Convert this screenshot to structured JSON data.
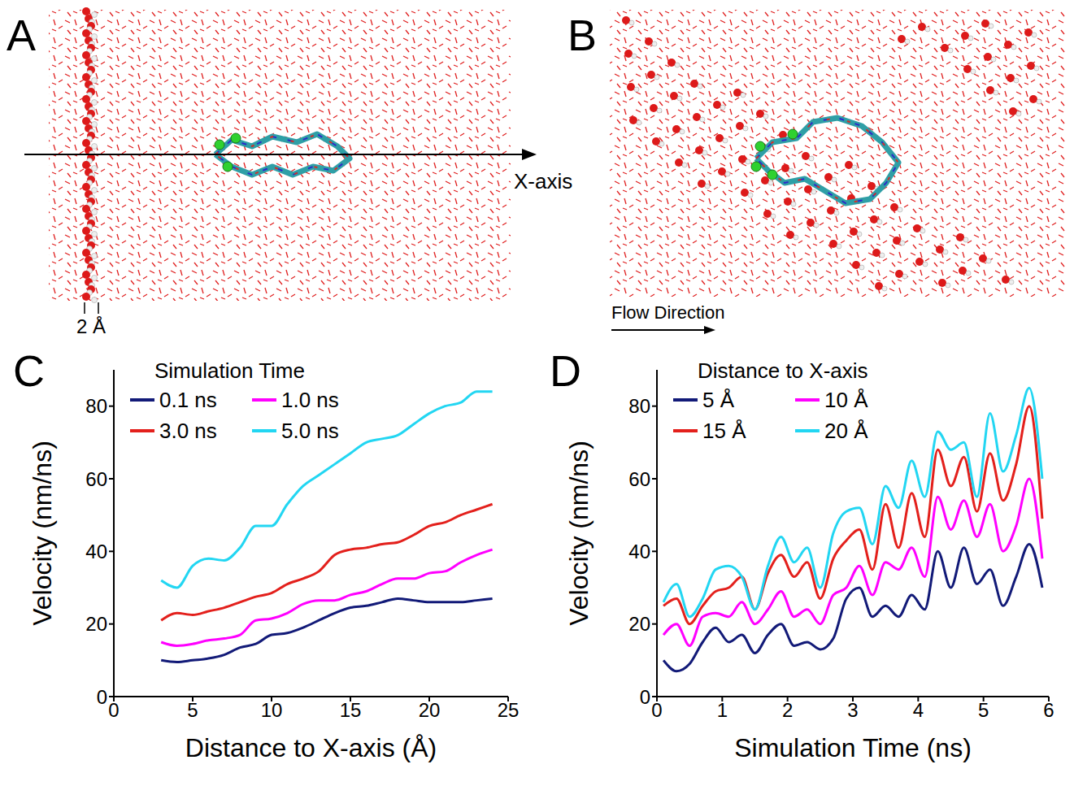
{
  "images": [
    {
      "panel": "A",
      "axis_label": "X-axis",
      "scale_label": "2 Å"
    },
    {
      "panel": "B",
      "flow_label": "Flow Direction"
    }
  ],
  "chart_data": [
    {
      "panel": "C",
      "type": "line",
      "x_label": "Distance to X-axis (Å)",
      "y_label": "Velocity (nm/ns)",
      "legend_title": "Simulation Time",
      "legend": "top-left",
      "grid": false,
      "line_style": "smooth",
      "x": [
        3,
        4,
        5,
        6,
        7,
        8,
        9,
        10,
        11,
        12,
        13,
        14,
        15,
        16,
        17,
        18,
        19,
        20,
        21,
        22,
        23,
        24
      ],
      "series": [
        {
          "name": "0.1 ns",
          "color": "#121a78",
          "values": [
            10,
            9.5,
            10,
            10.5,
            11.5,
            13.5,
            14.5,
            17,
            17.5,
            19,
            21,
            23,
            24.5,
            25,
            26,
            27,
            26.5,
            26,
            26,
            26,
            26.5,
            27
          ]
        },
        {
          "name": "1.0 ns",
          "color": "#ff00ff",
          "values": [
            15,
            14,
            14.5,
            15.5,
            16,
            17,
            21,
            21.5,
            23,
            25.5,
            26.5,
            26.5,
            28,
            29,
            31,
            32.5,
            32.5,
            34,
            34.5,
            37,
            39,
            40.5
          ]
        },
        {
          "name": "3.0 ns",
          "color": "#e3201c",
          "values": [
            21,
            23,
            22.5,
            23.5,
            24.5,
            26,
            27.5,
            28.5,
            31,
            32.5,
            34.5,
            39,
            40.5,
            41,
            42,
            42.5,
            44.5,
            47,
            48,
            50,
            51.5,
            53
          ]
        },
        {
          "name": "5.0 ns",
          "color": "#22d6f2",
          "values": [
            32,
            30,
            36,
            38,
            37.5,
            41,
            47,
            47,
            53,
            58,
            61,
            64,
            67,
            70,
            71,
            72,
            75,
            78,
            80,
            81,
            84,
            84
          ]
        }
      ],
      "xlim": [
        0,
        25
      ],
      "xticks": [
        0,
        5,
        10,
        15,
        20,
        25
      ],
      "ylim": [
        0,
        90
      ],
      "yticks": [
        0,
        20,
        40,
        60,
        80
      ]
    },
    {
      "panel": "D",
      "type": "line",
      "x_label": "Simulation Time (ns)",
      "y_label": "Velocity (nm/ns)",
      "legend_title": "Distance to X-axis",
      "legend": "top-left",
      "grid": false,
      "line_style": "smooth",
      "x": [
        0.1,
        0.3,
        0.5,
        0.7,
        0.9,
        1.1,
        1.3,
        1.5,
        1.7,
        1.9,
        2.1,
        2.3,
        2.5,
        2.7,
        2.9,
        3.1,
        3.3,
        3.5,
        3.7,
        3.9,
        4.1,
        4.3,
        4.5,
        4.7,
        4.9,
        5.1,
        5.3,
        5.5,
        5.7,
        5.9
      ],
      "series": [
        {
          "name": "5 Å",
          "color": "#121a78",
          "values": [
            10,
            7,
            9,
            15,
            19,
            15,
            17,
            12,
            17,
            20,
            14,
            15,
            13,
            16,
            27,
            30,
            22,
            25,
            22,
            28,
            24,
            40,
            30,
            41,
            31,
            35,
            25,
            33,
            42,
            30
          ]
        },
        {
          "name": "10 Å",
          "color": "#ff00ff",
          "values": [
            17,
            20,
            14,
            22,
            23,
            22,
            26,
            20,
            24,
            29,
            22,
            24,
            20,
            28,
            30,
            36,
            28,
            37,
            35,
            41,
            33,
            55,
            46,
            54,
            44,
            53,
            40,
            47,
            60,
            38
          ]
        },
        {
          "name": "15 Å",
          "color": "#e3201c",
          "values": [
            25,
            27,
            20,
            25,
            29,
            30,
            33,
            24,
            34,
            39,
            33,
            37,
            27,
            38,
            43,
            46,
            35,
            53,
            41,
            56,
            44,
            68,
            58,
            66,
            51,
            67,
            54,
            64,
            80,
            49
          ]
        },
        {
          "name": "20 Å",
          "color": "#22d6f2",
          "values": [
            26,
            31,
            22,
            27,
            35,
            36,
            33,
            24,
            36,
            44,
            37,
            41,
            30,
            45,
            51,
            52,
            42,
            58,
            52,
            65,
            55,
            73,
            68,
            70,
            55,
            78,
            62,
            72,
            85,
            60
          ]
        }
      ],
      "xlim": [
        0,
        6
      ],
      "xticks": [
        0,
        1,
        2,
        3,
        4,
        5,
        6
      ],
      "ylim": [
        0,
        90
      ],
      "yticks": [
        0,
        20,
        40,
        60,
        80
      ]
    }
  ]
}
